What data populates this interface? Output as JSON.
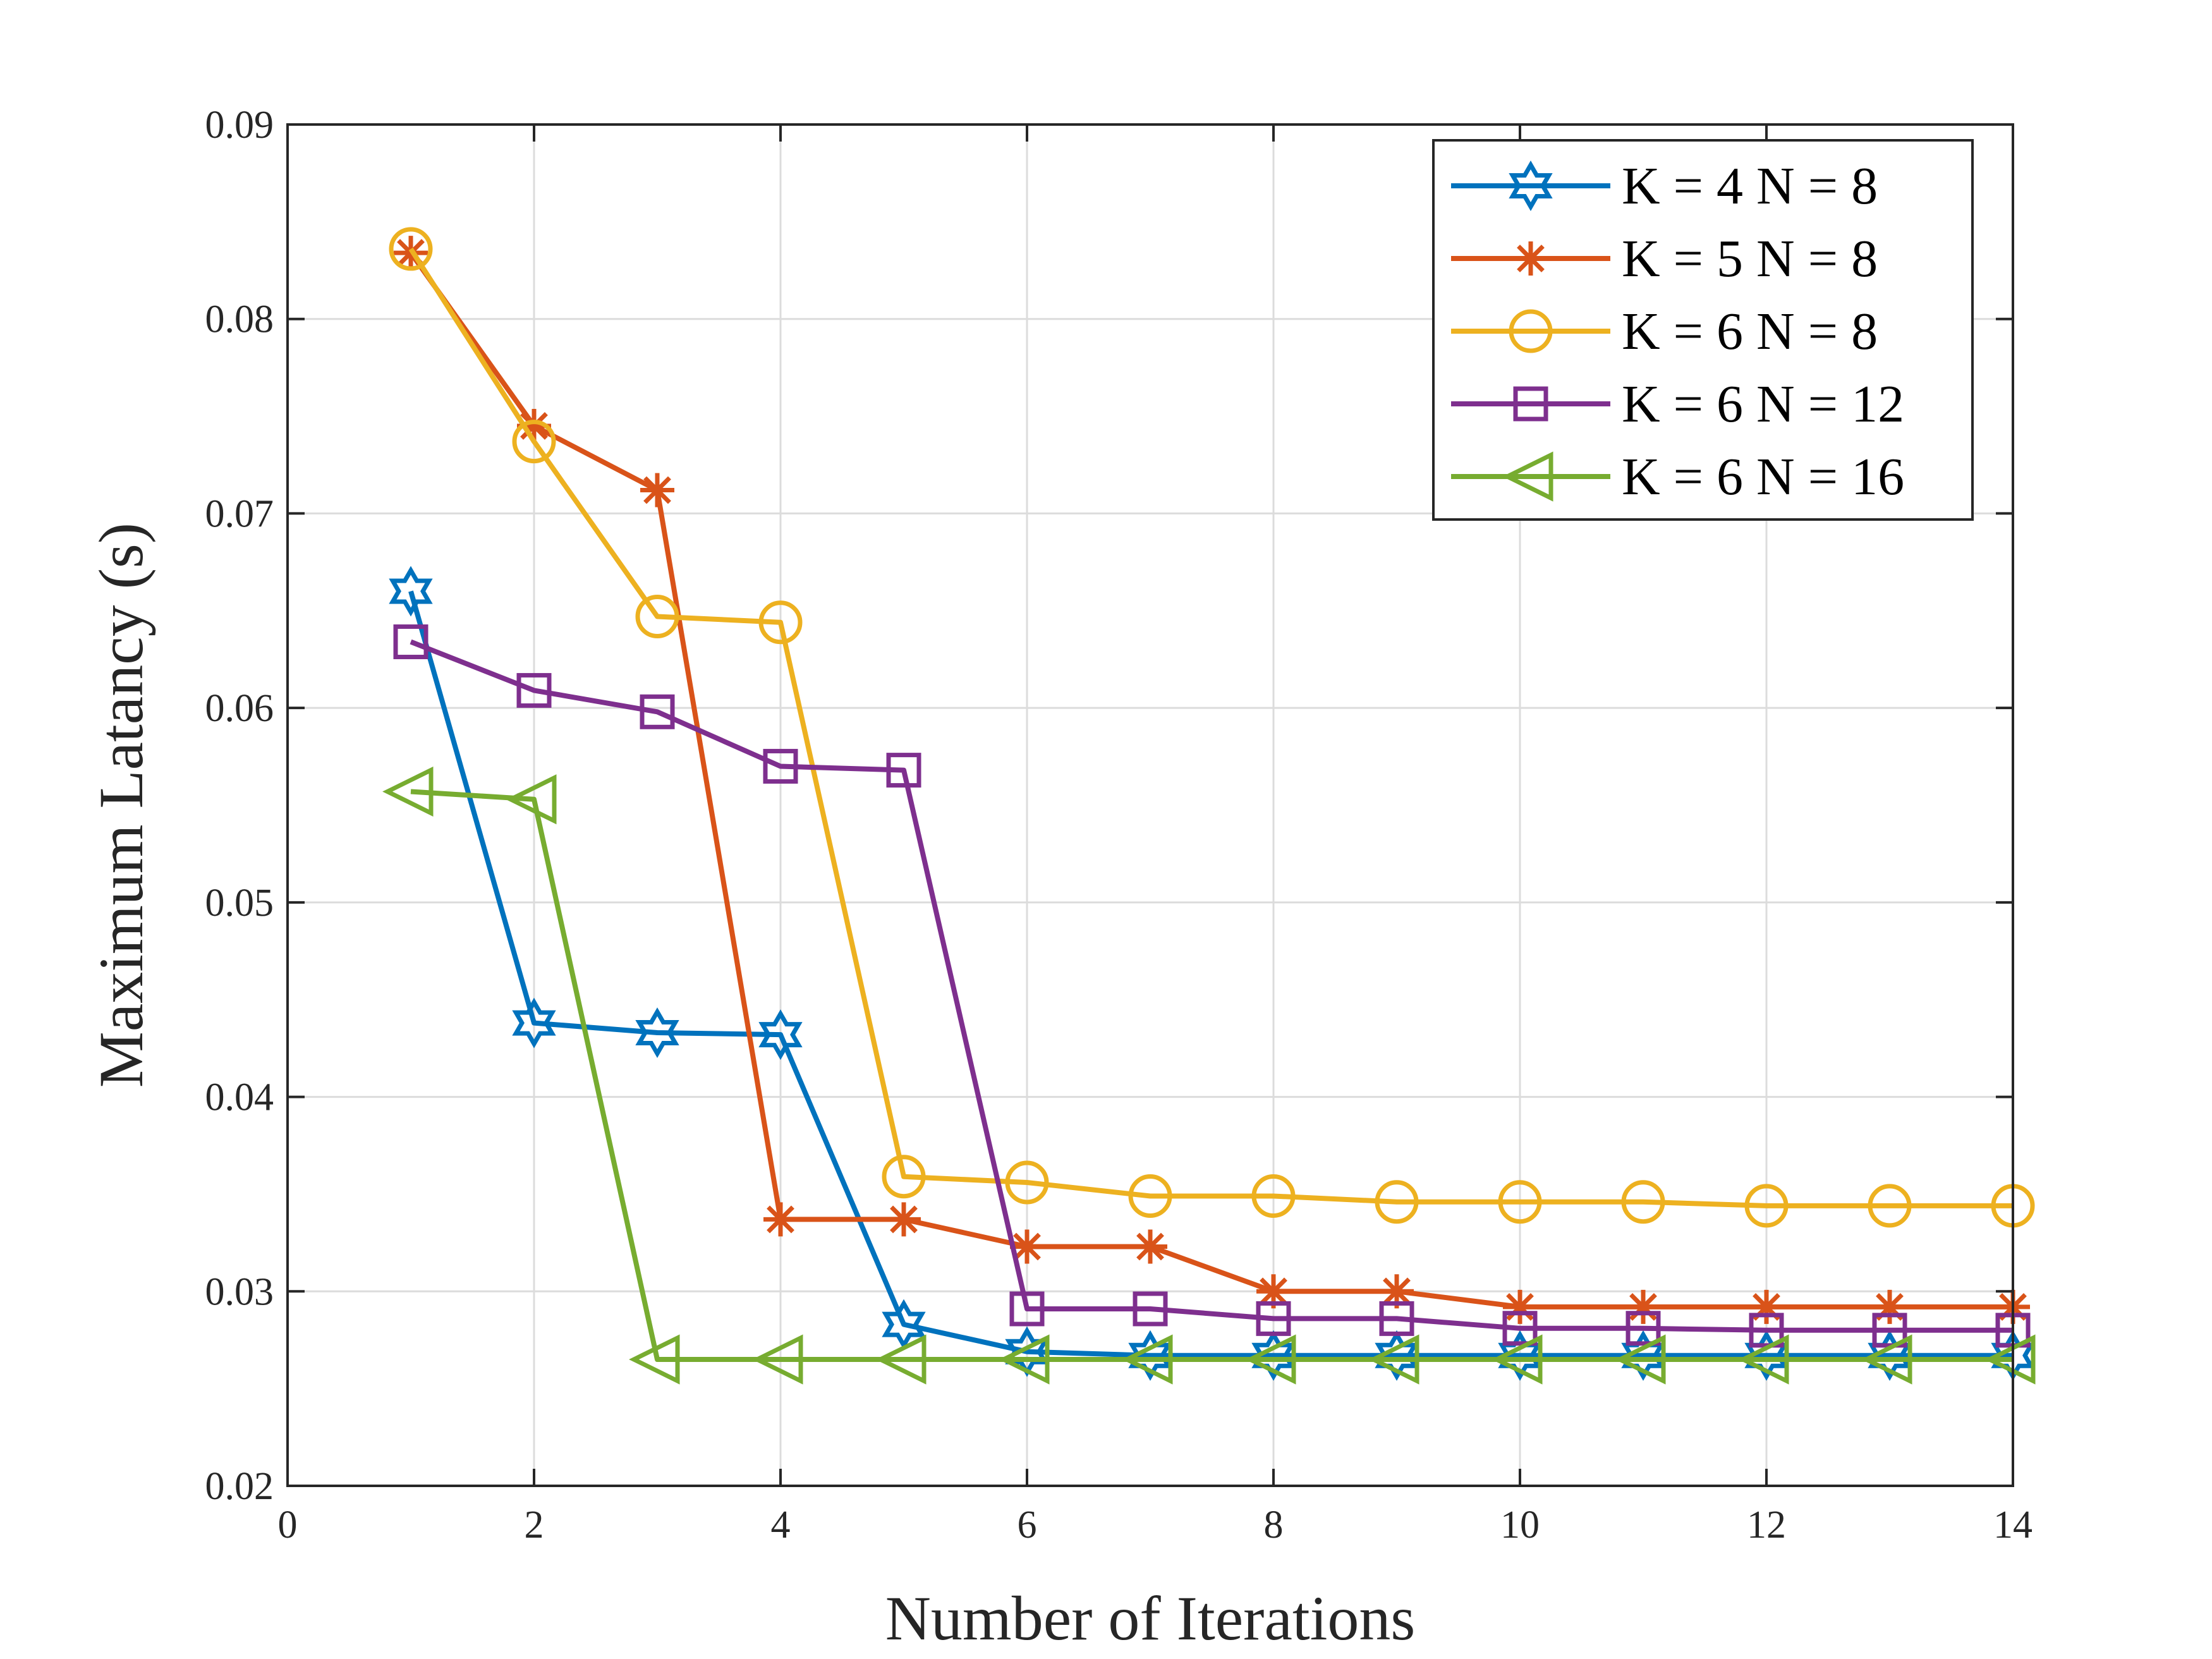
{
  "chart_data": {
    "type": "line",
    "title": "",
    "xlabel": "Number of Iterations",
    "ylabel": "Maximum Latancy (s)",
    "xlim": [
      0,
      14
    ],
    "ylim": [
      0.02,
      0.09
    ],
    "xticks": [
      0,
      2,
      4,
      6,
      8,
      10,
      12,
      14
    ],
    "xtick_labels": [
      "0",
      "2",
      "4",
      "6",
      "8",
      "10",
      "12",
      "14"
    ],
    "yticks": [
      0.02,
      0.03,
      0.04,
      0.05,
      0.06,
      0.07,
      0.08,
      0.09
    ],
    "ytick_labels": [
      "0.02",
      "0.03",
      "0.04",
      "0.05",
      "0.06",
      "0.07",
      "0.08",
      "0.09"
    ],
    "grid": true,
    "legend_position": "top-right",
    "x": [
      1,
      2,
      3,
      4,
      5,
      6,
      7,
      8,
      9,
      10,
      11,
      12,
      13,
      14
    ],
    "series": [
      {
        "name": "K = 4 N = 8",
        "color": "#0072BD",
        "marker": "hexagram",
        "values": [
          0.066,
          0.0438,
          0.0433,
          0.0432,
          0.0283,
          0.0269,
          0.0267,
          0.0267,
          0.0267,
          0.0267,
          0.0267,
          0.0267,
          0.0267,
          0.0267
        ]
      },
      {
        "name": "K = 5 N = 8",
        "color": "#D95319",
        "marker": "asterisk",
        "values": [
          0.0834,
          0.0745,
          0.0712,
          0.0337,
          0.0337,
          0.0323,
          0.0323,
          0.03,
          0.03,
          0.0292,
          0.0292,
          0.0292,
          0.0292,
          0.0292
        ]
      },
      {
        "name": "K = 6 N = 8",
        "color": "#EDB120",
        "marker": "circle",
        "values": [
          0.0836,
          0.0737,
          0.0647,
          0.0644,
          0.0359,
          0.0356,
          0.0349,
          0.0349,
          0.0346,
          0.0346,
          0.0346,
          0.0344,
          0.0344,
          0.0344
        ]
      },
      {
        "name": "K = 6 N = 12",
        "color": "#7E2F8E",
        "marker": "square",
        "values": [
          0.0634,
          0.0609,
          0.0598,
          0.057,
          0.0568,
          0.0291,
          0.0291,
          0.0286,
          0.0286,
          0.0281,
          0.0281,
          0.028,
          0.028,
          0.028
        ]
      },
      {
        "name": "K = 6 N = 16",
        "color": "#77AC30",
        "marker": "triangle-left",
        "values": [
          0.0557,
          0.0553,
          0.0265,
          0.0265,
          0.0265,
          0.0265,
          0.0265,
          0.0265,
          0.0265,
          0.0265,
          0.0265,
          0.0265,
          0.0265,
          0.0265
        ]
      }
    ]
  }
}
